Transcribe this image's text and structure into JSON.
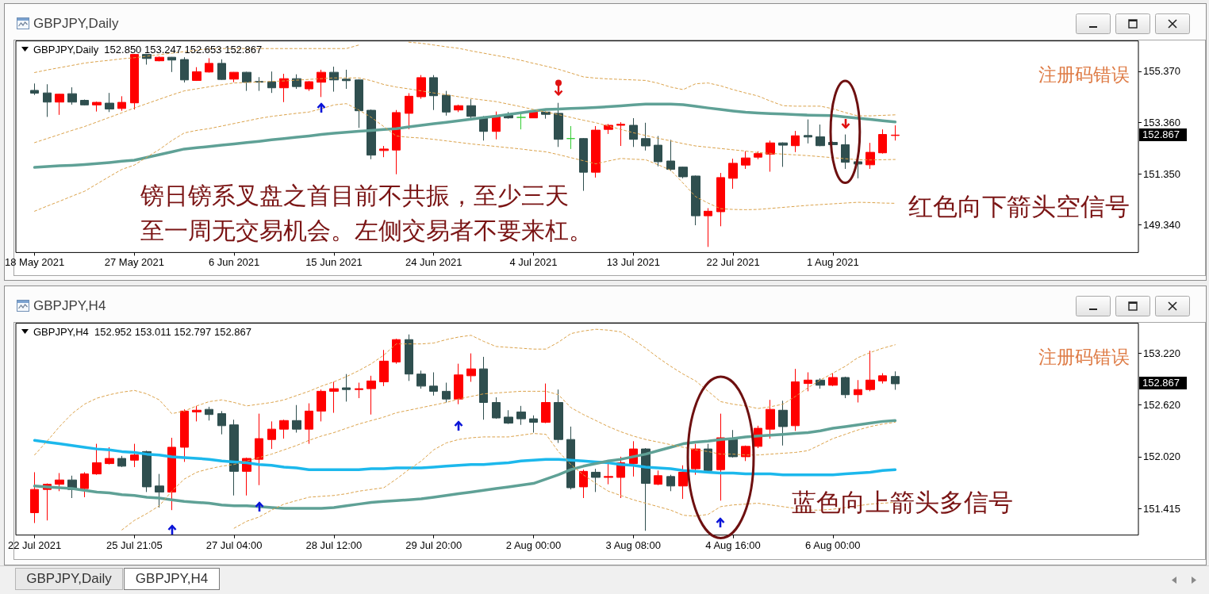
{
  "chart_data": [
    {
      "type": "candlestick",
      "title": "GBPJPY,Daily",
      "subtitle": "GBPJPY,Daily  152.850 153.247 152.653 152.867",
      "categories": [
        null,
        "18 May 2021",
        null,
        null,
        null,
        null,
        null,
        null,
        null,
        "27 May 2021",
        null,
        null,
        null,
        null,
        null,
        null,
        null,
        "6 Jun 2021",
        null,
        null,
        null,
        null,
        null,
        null,
        null,
        "15 Jun 2021",
        null,
        null,
        null,
        null,
        null,
        null,
        null,
        "24 Jun 2021",
        null,
        null,
        null,
        null,
        null,
        null,
        null,
        "4 Jul 2021",
        null,
        null,
        null,
        null,
        null,
        null,
        null,
        "13 Jul 2021",
        null,
        null,
        null,
        null,
        null,
        null,
        null,
        "22 Jul 2021",
        null,
        null,
        null,
        null,
        null,
        null,
        null,
        "1 Aug 2021",
        null,
        null,
        null,
        null,
        null,
        null,
        null,
        null,
        null,
        null,
        null,
        null,
        null,
        null,
        null,
        null,
        null,
        null,
        null,
        null,
        null,
        null,
        null,
        null
      ],
      "ohlc": [
        null,
        [
          154.62,
          154.89,
          154.44,
          154.51
        ],
        [
          154.52,
          154.86,
          153.58,
          154.16
        ],
        [
          154.16,
          154.49,
          153.66,
          154.47
        ],
        [
          154.49,
          154.74,
          154.06,
          154.16
        ],
        [
          154.23,
          154.26,
          154.03,
          154.05
        ],
        [
          154.05,
          154.18,
          153.79,
          154.15
        ],
        [
          154.12,
          154.52,
          153.77,
          153.89
        ],
        [
          153.91,
          154.39,
          153.82,
          154.15
        ],
        [
          154.13,
          156.05,
          153.87,
          156.03
        ],
        [
          156.03,
          156.05,
          155.63,
          155.87
        ],
        [
          155.78,
          155.95,
          155.76,
          155.92
        ],
        [
          155.92,
          155.93,
          155.34,
          155.81
        ],
        [
          155.83,
          155.92,
          154.93,
          155.03
        ],
        [
          155.01,
          155.53,
          154.99,
          155.35
        ],
        [
          155.34,
          155.88,
          155.32,
          155.68
        ],
        [
          155.68,
          155.84,
          155.03,
          155.05
        ],
        [
          155.06,
          155.34,
          154.94,
          155.33
        ],
        [
          155.33,
          155.35,
          154.6,
          154.94
        ],
        [
          154.97,
          155.14,
          154.6,
          154.94
        ],
        [
          154.96,
          155.36,
          154.52,
          154.72
        ],
        [
          154.72,
          155.27,
          154.16,
          155.08
        ],
        [
          155.08,
          155.25,
          154.68,
          154.77
        ],
        [
          154.68,
          154.98,
          154.6,
          154.96
        ],
        [
          154.94,
          155.43,
          154.36,
          155.33
        ],
        [
          155.33,
          155.55,
          154.57,
          155.03
        ],
        [
          155.06,
          155.43,
          154.68,
          155.0
        ],
        [
          155.03,
          155.06,
          153.15,
          153.82
        ],
        [
          153.84,
          153.87,
          151.92,
          152.08
        ],
        [
          152.26,
          152.44,
          152.0,
          152.32
        ],
        [
          152.28,
          153.85,
          151.33,
          153.75
        ],
        [
          153.72,
          154.51,
          153.1,
          154.39
        ],
        [
          154.37,
          155.22,
          154.29,
          155.12
        ],
        [
          155.12,
          155.22,
          153.85,
          154.41
        ],
        [
          154.43,
          154.6,
          153.63,
          153.77
        ],
        [
          153.85,
          154.06,
          153.77,
          154.02
        ],
        [
          154.02,
          154.27,
          153.44,
          153.6
        ],
        [
          153.54,
          153.61,
          152.65,
          153.01
        ],
        [
          153.01,
          153.79,
          152.7,
          153.59
        ],
        [
          153.64,
          153.77,
          153.51,
          153.54
        ],
        [
          153.56,
          153.75,
          153.09,
          153.56
        ],
        [
          153.54,
          153.79,
          153.53,
          153.77
        ],
        [
          153.77,
          153.79,
          153.51,
          153.68
        ],
        [
          153.72,
          154.13,
          152.4,
          152.7
        ],
        [
          152.73,
          153.22,
          152.32,
          152.73
        ],
        [
          152.73,
          152.75,
          150.68,
          151.41
        ],
        [
          151.41,
          153.22,
          151.2,
          153.06
        ],
        [
          153.09,
          153.3,
          152.91,
          153.25
        ],
        [
          153.25,
          153.37,
          152.44,
          153.29
        ],
        [
          153.25,
          153.53,
          152.4,
          152.7
        ],
        [
          152.73,
          153.35,
          152.26,
          152.44
        ],
        [
          152.47,
          152.83,
          151.64,
          151.82
        ],
        [
          151.85,
          152.68,
          151.46,
          151.52
        ],
        [
          151.61,
          151.63,
          151.17,
          151.23
        ],
        [
          151.26,
          151.28,
          149.33,
          149.7
        ],
        [
          149.7,
          150.0,
          148.48,
          149.88
        ],
        [
          149.86,
          151.38,
          149.29,
          151.2
        ],
        [
          151.17,
          151.94,
          150.76,
          151.76
        ],
        [
          151.69,
          152.23,
          151.54,
          151.97
        ],
        [
          152.0,
          152.23,
          151.92,
          152.14
        ],
        [
          152.12,
          152.65,
          151.43,
          152.56
        ],
        [
          152.56,
          152.58,
          151.62,
          152.47
        ],
        [
          152.45,
          153.03,
          152.2,
          152.84
        ],
        [
          152.85,
          153.48,
          152.54,
          152.79
        ],
        [
          152.8,
          153.28,
          152.43,
          152.45
        ],
        [
          152.58,
          152.61,
          152.47,
          152.49
        ],
        [
          152.49,
          152.89,
          151.54,
          151.8
        ],
        [
          151.82,
          151.84,
          151.17,
          151.73
        ],
        [
          151.7,
          152.56,
          151.54,
          152.19
        ],
        [
          152.17,
          153.09,
          152.14,
          152.89
        ],
        [
          152.85,
          153.247,
          152.653,
          152.867
        ],
        null,
        null,
        null,
        null,
        null,
        null,
        null,
        null,
        null,
        null,
        null,
        null,
        null,
        null,
        null,
        null,
        null,
        null,
        null
      ],
      "colors": [
        null,
        "#2f4f4f",
        "#2f4f4f",
        "#ff0000",
        "#2f4f4f",
        "#2f4f4f",
        "#ff0000",
        "#2f4f4f",
        "#ff0000",
        "#ff0000",
        "#2f4f4f",
        "#ff0000",
        "#2f4f4f",
        "#2f4f4f",
        "#ff0000",
        "#ff0000",
        "#2f4f4f",
        "#ff0000",
        "#2f4f4f",
        "#2f4f4f",
        "#2f4f4f",
        "#ff0000",
        "#2f4f4f",
        "#ff0000",
        "#ff0000",
        "#2f4f4f",
        "#2f4f4f",
        "#2f4f4f",
        "#2f4f4f",
        "#ff0000",
        "#ff0000",
        "#ff0000",
        "#ff0000",
        "#2f4f4f",
        "#2f4f4f",
        "#ff0000",
        "#2f4f4f",
        "#2f4f4f",
        "#ff0000",
        "#2f4f4f",
        "#33cc33",
        "#ff0000",
        "#2f4f4f",
        "#2f4f4f",
        "#33cc33",
        "#2f4f4f",
        "#ff0000",
        "#ff0000",
        "#ff0000",
        "#2f4f4f",
        "#2f4f4f",
        "#2f4f4f",
        "#2f4f4f",
        "#2f4f4f",
        "#2f4f4f",
        "#ff0000",
        "#ff0000",
        "#ff0000",
        "#ff0000",
        "#ff0000",
        "#ff0000",
        "#2f4f4f",
        "#ff0000",
        "#2f4f4f",
        "#2f4f4f",
        "#2f4f4f",
        "#2f4f4f",
        "#2f4f4f",
        "#ff0000",
        "#ff0000",
        "#ff0000",
        null,
        null,
        null,
        null,
        null,
        null,
        null,
        null,
        null,
        null,
        null,
        null,
        null,
        null,
        null,
        null,
        null,
        null,
        null
      ],
      "series": [
        {
          "type": "line",
          "color": "#5fa196",
          "line_style": "solid",
          "values": [
            null,
            151.6,
            151.63,
            151.66,
            151.68,
            151.71,
            151.75,
            151.79,
            151.84,
            151.88,
            151.99,
            152.1,
            152.21,
            152.32,
            152.37,
            152.42,
            152.47,
            152.52,
            152.57,
            152.62,
            152.68,
            152.73,
            152.78,
            152.83,
            152.89,
            152.94,
            152.98,
            153.02,
            153.05,
            153.09,
            153.12,
            153.19,
            153.25,
            153.31,
            153.37,
            153.43,
            153.49,
            153.55,
            153.61,
            153.68,
            153.74,
            153.81,
            153.87,
            153.89,
            153.91,
            153.93,
            153.95,
            153.98,
            154.01,
            154.05,
            154.08,
            154.08,
            154.08,
            154.06,
            154.0,
            153.93,
            153.87,
            153.81,
            153.76,
            153.73,
            153.71,
            153.69,
            153.67,
            153.65,
            153.64,
            153.63,
            153.58,
            153.53,
            153.48,
            153.43,
            153.38,
            null,
            null,
            null,
            null,
            null,
            null,
            null,
            null,
            null,
            null,
            null,
            null,
            null,
            null,
            null,
            null,
            null,
            null,
            null
          ]
        },
        {
          "type": "line",
          "color": "#dba24a",
          "line_style": "dashed",
          "values": [
            null,
            155.32,
            155.42,
            155.51,
            155.6,
            155.69,
            155.75,
            155.8,
            155.86,
            155.9,
            155.96,
            156.02,
            156.08,
            156.14,
            156.2,
            156.26,
            156.26,
            156.26,
            156.26,
            156.26,
            156.26,
            156.26,
            156.26,
            156.26,
            156.26,
            156.26,
            156.26,
            156.4,
            null,
            null,
            null,
            156.51,
            156.47,
            156.4,
            156.33,
            156.27,
            156.17,
            156.08,
            155.99,
            155.9,
            155.8,
            155.68,
            155.57,
            155.45,
            155.3,
            155.15,
            155.1,
            155.07,
            155.05,
            155.03,
            155.01,
            154.9,
            154.75,
            154.65,
            154.88,
            154.91,
            154.8,
            154.65,
            154.52,
            154.4,
            154.2,
            154.02,
            154.0,
            154.0,
            154.0,
            153.9,
            153.75,
            153.62,
            153.62,
            153.64,
            153.66,
            null,
            null,
            null,
            null,
            null,
            null,
            null,
            null,
            null,
            null,
            null,
            null,
            null,
            null,
            null,
            null,
            null,
            null,
            null
          ]
        },
        {
          "type": "line",
          "color": "#dba24a",
          "line_style": "dashed",
          "values": [
            null,
            152.57,
            152.73,
            152.89,
            153.05,
            153.2,
            153.38,
            153.56,
            153.74,
            153.93,
            154.1,
            154.27,
            154.44,
            154.6,
            154.68,
            154.76,
            154.84,
            154.91,
            154.93,
            154.95,
            154.97,
            154.99,
            155.02,
            155.05,
            155.08,
            155.11,
            155.11,
            155.11,
            155.0,
            154.85,
            154.75,
            154.68,
            154.6,
            154.52,
            154.45,
            154.37,
            154.3,
            154.24,
            154.18,
            154.08,
            153.98,
            153.87,
            153.77,
            153.67,
            153.56,
            153.45,
            153.35,
            153.22,
            153.09,
            152.96,
            152.85,
            152.74,
            152.64,
            152.53,
            152.44,
            152.39,
            152.34,
            152.29,
            152.24,
            152.18,
            152.15,
            152.12,
            152.09,
            152.06,
            152.02,
            151.98,
            151.94,
            151.9,
            151.89,
            151.9,
            151.91,
            null,
            null,
            null,
            null,
            null,
            null,
            null,
            null,
            null,
            null,
            null,
            null,
            null,
            null,
            null,
            null,
            null,
            null,
            null
          ]
        },
        {
          "type": "line",
          "color": "#dba24a",
          "line_style": "dashed",
          "values": [
            null,
            149.88,
            150.08,
            150.27,
            150.47,
            150.66,
            150.95,
            151.24,
            151.52,
            151.69,
            152.0,
            152.3,
            152.65,
            152.95,
            153.05,
            153.12,
            153.22,
            153.32,
            153.42,
            153.52,
            153.6,
            153.66,
            153.72,
            153.77,
            153.9,
            154.05,
            154.1,
            153.85,
            153.56,
            153.2,
            152.83,
            152.78,
            152.75,
            152.7,
            152.64,
            152.58,
            152.52,
            152.47,
            152.42,
            152.37,
            152.32,
            152.26,
            152.21,
            152.1,
            151.98,
            151.86,
            151.74,
            151.85,
            151.95,
            151.92,
            151.9,
            151.7,
            151.49,
            150.98,
            150.45,
            150.2,
            149.98,
            149.95,
            149.94,
            149.95,
            149.99,
            150.03,
            150.07,
            150.11,
            150.14,
            150.17,
            150.2,
            150.23,
            150.22,
            150.2,
            150.19,
            null,
            null,
            null,
            null,
            null,
            null,
            null,
            null,
            null,
            null,
            null,
            null,
            null,
            null,
            null,
            null,
            null,
            null,
            null
          ]
        }
      ],
      "ylim": [
        148.26,
        156.56
      ],
      "yticks": [
        {
          "value": 149.34,
          "label": "149.340"
        },
        {
          "value": 151.35,
          "label": "151.350"
        },
        {
          "value": 153.36,
          "label": "153.360"
        },
        {
          "value": 155.37,
          "label": "155.370"
        }
      ],
      "marker": "none",
      "annotations": [
        "镑日镑系叉盘之首目前不共振，至少三天",
        "至一周无交易机会。左侧交易者不要来杠。",
        "注册码错误",
        "红色向下箭头空信号",
        "152.867"
      ]
    },
    {
      "type": "candlestick",
      "title": "GBPJPY,H4",
      "subtitle": "GBPJPY,H4  152.952 153.011 152.797 152.867",
      "categories": [
        null,
        "22 Jul 2021",
        null,
        null,
        null,
        null,
        null,
        null,
        null,
        "25 Jul 21:05",
        null,
        null,
        null,
        null,
        null,
        null,
        null,
        "27 Jul 04:00",
        null,
        null,
        null,
        null,
        null,
        null,
        null,
        "28 Jul 12:00",
        null,
        null,
        null,
        null,
        null,
        null,
        null,
        "29 Jul 20:00",
        null,
        null,
        null,
        null,
        null,
        null,
        null,
        "2 Aug 00:00",
        null,
        null,
        null,
        null,
        null,
        null,
        null,
        "3 Aug 08:00",
        null,
        null,
        null,
        null,
        null,
        null,
        null,
        "4 Aug 16:00",
        null,
        null,
        null,
        null,
        null,
        null,
        null,
        "6 Aug 00:00",
        null,
        null,
        null,
        null,
        null,
        null,
        null,
        null,
        null,
        null,
        null,
        null,
        null,
        null,
        null,
        null,
        null,
        null,
        null,
        null,
        null,
        null,
        null,
        null
      ],
      "ohlc": [
        null,
        [
          151.37,
          151.84,
          151.25,
          151.64
        ],
        [
          151.64,
          151.71,
          151.28,
          151.7
        ],
        [
          151.7,
          151.83,
          151.62,
          151.75
        ],
        [
          151.75,
          151.8,
          151.54,
          151.64
        ],
        [
          151.65,
          151.84,
          151.55,
          151.82
        ],
        [
          151.82,
          152.17,
          151.81,
          151.95
        ],
        [
          151.94,
          152.13,
          151.93,
          152.0
        ],
        [
          152.0,
          152.03,
          151.9,
          151.91
        ],
        [
          151.98,
          152.17,
          151.9,
          152.04
        ],
        [
          152.08,
          152.09,
          151.61,
          151.67
        ],
        [
          151.68,
          151.82,
          151.43,
          151.61
        ],
        [
          151.61,
          152.24,
          151.4,
          152.13
        ],
        [
          152.13,
          152.57,
          151.96,
          152.55
        ],
        [
          152.54,
          152.61,
          152.43,
          152.56
        ],
        [
          152.57,
          152.6,
          152.44,
          152.51
        ],
        [
          152.52,
          152.55,
          152.28,
          152.38
        ],
        [
          152.39,
          152.45,
          151.57,
          151.85
        ],
        [
          151.85,
          152.01,
          151.57,
          152.0
        ],
        [
          151.99,
          152.52,
          151.69,
          152.23
        ],
        [
          152.22,
          152.43,
          152.11,
          152.34
        ],
        [
          152.34,
          152.45,
          152.23,
          152.44
        ],
        [
          152.44,
          152.62,
          152.3,
          152.34
        ],
        [
          152.34,
          152.64,
          152.17,
          152.55
        ],
        [
          152.55,
          152.8,
          152.43,
          152.78
        ],
        [
          152.78,
          152.89,
          152.53,
          152.81
        ],
        [
          152.82,
          152.98,
          152.66,
          152.8
        ],
        [
          152.8,
          152.88,
          152.7,
          152.81
        ],
        [
          152.81,
          152.96,
          152.51,
          152.9
        ],
        [
          152.89,
          153.26,
          152.84,
          153.13
        ],
        [
          153.12,
          153.39,
          153.1,
          153.38
        ],
        [
          153.38,
          153.44,
          152.9,
          152.98
        ],
        [
          152.98,
          153.02,
          152.81,
          152.84
        ],
        [
          152.84,
          153.0,
          152.73,
          152.78
        ],
        [
          152.78,
          152.88,
          152.65,
          152.69
        ],
        [
          152.69,
          153.1,
          152.63,
          152.97
        ],
        [
          152.96,
          153.22,
          152.89,
          153.04
        ],
        [
          153.04,
          153.18,
          152.45,
          152.65
        ],
        [
          152.65,
          152.71,
          152.46,
          152.47
        ],
        [
          152.48,
          152.56,
          152.4,
          152.41
        ],
        [
          152.54,
          152.61,
          152.39,
          152.46
        ],
        [
          152.46,
          152.5,
          152.3,
          152.42
        ],
        [
          152.42,
          152.87,
          152.41,
          152.65
        ],
        [
          152.65,
          152.8,
          152.18,
          152.22
        ],
        [
          152.22,
          152.37,
          151.64,
          151.66
        ],
        [
          151.67,
          151.87,
          151.54,
          151.85
        ],
        [
          151.84,
          151.88,
          151.61,
          151.78
        ],
        [
          151.78,
          151.94,
          151.7,
          151.79
        ],
        [
          151.78,
          152.02,
          151.54,
          151.95
        ],
        [
          151.94,
          152.2,
          151.79,
          152.11
        ],
        [
          152.11,
          152.12,
          151.16,
          151.71
        ],
        [
          151.7,
          151.86,
          151.69,
          151.8
        ],
        [
          151.79,
          151.81,
          151.62,
          151.68
        ],
        [
          151.68,
          151.92,
          151.53,
          151.84
        ],
        [
          151.88,
          152.17,
          151.81,
          152.11
        ],
        [
          152.11,
          152.17,
          151.85,
          151.86
        ],
        [
          151.87,
          152.52,
          151.51,
          152.24
        ],
        [
          152.22,
          152.33,
          152.01,
          152.02
        ],
        [
          152.02,
          152.15,
          151.97,
          152.14
        ],
        [
          152.14,
          152.38,
          152.12,
          152.35
        ],
        [
          152.34,
          152.68,
          152.23,
          152.57
        ],
        [
          152.56,
          152.67,
          152.15,
          152.37
        ],
        [
          152.38,
          153.04,
          152.32,
          152.89
        ],
        [
          152.87,
          153.0,
          152.78,
          152.91
        ],
        [
          152.91,
          152.93,
          152.81,
          152.85
        ],
        [
          152.85,
          152.99,
          152.84,
          152.94
        ],
        [
          152.94,
          152.95,
          152.7,
          152.74
        ],
        [
          152.74,
          152.91,
          152.65,
          152.8
        ],
        [
          152.8,
          153.25,
          152.78,
          152.91
        ],
        [
          152.9,
          152.99,
          152.87,
          152.96
        ],
        [
          152.952,
          153.011,
          152.797,
          152.867
        ],
        null,
        null,
        null,
        null,
        null,
        null,
        null,
        null,
        null,
        null,
        null,
        null,
        null,
        null,
        null,
        null,
        null,
        null,
        null
      ],
      "colors": [
        null,
        "#ff0000",
        "#ff0000",
        "#ff0000",
        "#2f4f4f",
        "#ff0000",
        "#ff0000",
        "#ff0000",
        "#2f4f4f",
        "#ff0000",
        "#2f4f4f",
        "#2f4f4f",
        "#ff0000",
        "#ff0000",
        "#ff0000",
        "#2f4f4f",
        "#2f4f4f",
        "#2f4f4f",
        "#ff0000",
        "#ff0000",
        "#ff0000",
        "#ff0000",
        "#2f4f4f",
        "#ff0000",
        "#ff0000",
        "#ff0000",
        "#2f4f4f",
        "#ff0000",
        "#ff0000",
        "#ff0000",
        "#ff0000",
        "#2f4f4f",
        "#2f4f4f",
        "#2f4f4f",
        "#2f4f4f",
        "#ff0000",
        "#ff0000",
        "#2f4f4f",
        "#2f4f4f",
        "#2f4f4f",
        "#2f4f4f",
        "#2f4f4f",
        "#ff0000",
        "#2f4f4f",
        "#2f4f4f",
        "#ff0000",
        "#2f4f4f",
        "#ff0000",
        "#ff0000",
        "#ff0000",
        "#2f4f4f",
        "#ff0000",
        "#2f4f4f",
        "#ff0000",
        "#ff0000",
        "#2f4f4f",
        "#ff0000",
        "#2f4f4f",
        "#ff0000",
        "#ff0000",
        "#ff0000",
        "#2f4f4f",
        "#ff0000",
        "#ff0000",
        "#2f4f4f",
        "#ff0000",
        "#2f4f4f",
        "#ff0000",
        "#ff0000",
        "#ff0000",
        "#2f4f4f",
        null,
        null,
        null,
        null,
        null,
        null,
        null,
        null,
        null,
        null,
        null,
        null,
        null,
        null,
        null,
        null,
        null,
        null,
        null
      ],
      "series": [
        {
          "type": "line",
          "color": "#1cb8ec",
          "line_style": "solid",
          "values": [
            null,
            152.21,
            152.19,
            152.17,
            152.15,
            152.13,
            152.11,
            152.1,
            152.08,
            152.07,
            152.05,
            152.04,
            152.02,
            152.01,
            152.0,
            151.99,
            151.97,
            151.96,
            151.95,
            151.93,
            151.92,
            151.9,
            151.89,
            151.87,
            151.87,
            151.87,
            151.87,
            151.87,
            151.88,
            151.88,
            151.89,
            151.89,
            151.89,
            151.9,
            151.91,
            151.92,
            151.93,
            151.93,
            151.94,
            151.95,
            151.97,
            151.98,
            151.99,
            151.99,
            151.98,
            151.97,
            151.96,
            151.95,
            151.93,
            151.92,
            151.9,
            151.89,
            151.88,
            151.86,
            151.85,
            151.84,
            151.83,
            151.83,
            151.82,
            151.82,
            151.82,
            151.81,
            151.81,
            151.81,
            151.81,
            151.81,
            151.82,
            151.83,
            151.84,
            151.86,
            151.87,
            null,
            null,
            null,
            null,
            null,
            null,
            null,
            null,
            null,
            null,
            null,
            null,
            null,
            null,
            null,
            null,
            null,
            null,
            null
          ]
        },
        {
          "type": "line",
          "color": "#5fa196",
          "line_style": "solid",
          "values": [
            null,
            151.68,
            151.67,
            151.66,
            151.65,
            151.63,
            151.61,
            151.6,
            151.58,
            151.57,
            151.55,
            151.54,
            151.52,
            151.5,
            151.49,
            151.48,
            151.46,
            151.45,
            151.45,
            151.44,
            151.43,
            151.42,
            151.42,
            151.42,
            151.42,
            151.43,
            151.45,
            151.47,
            151.49,
            151.5,
            151.51,
            151.52,
            151.53,
            151.55,
            151.57,
            151.59,
            151.61,
            151.63,
            151.65,
            151.67,
            151.69,
            151.71,
            151.76,
            151.81,
            151.87,
            151.91,
            151.94,
            151.97,
            151.99,
            152.02,
            152.05,
            152.09,
            152.13,
            152.17,
            152.19,
            152.2,
            152.22,
            152.23,
            152.25,
            152.26,
            152.27,
            152.28,
            152.29,
            152.3,
            152.32,
            152.35,
            152.37,
            152.39,
            152.41,
            152.43,
            152.44,
            null,
            null,
            null,
            null,
            null,
            null,
            null,
            null,
            null,
            null,
            null,
            null,
            null,
            null,
            null,
            null,
            null,
            null,
            null
          ]
        },
        {
          "type": "line",
          "color": "#dba24a",
          "line_style": "dashed",
          "values": [
            null,
            152.04,
            152.2,
            152.37,
            152.52,
            152.63,
            152.7,
            152.74,
            152.77,
            152.79,
            152.75,
            152.68,
            152.52,
            152.55,
            152.61,
            152.66,
            152.68,
            152.65,
            152.61,
            152.63,
            152.65,
            152.68,
            152.73,
            152.78,
            152.84,
            152.89,
            152.95,
            153.02,
            153.1,
            153.2,
            153.33,
            153.33,
            153.33,
            153.34,
            153.38,
            153.41,
            153.43,
            153.36,
            153.3,
            153.29,
            153.28,
            153.27,
            153.27,
            153.35,
            153.45,
            153.48,
            153.5,
            153.49,
            153.47,
            153.38,
            153.28,
            153.17,
            153.07,
            152.98,
            152.9,
            152.78,
            152.66,
            152.63,
            152.61,
            152.58,
            152.6,
            152.63,
            152.72,
            152.82,
            152.91,
            152.99,
            153.07,
            153.17,
            153.23,
            153.28,
            153.32,
            null,
            null,
            null,
            null,
            null,
            null,
            null,
            null,
            null,
            null,
            null,
            null,
            null,
            null,
            null,
            null,
            null,
            null,
            null
          ]
        },
        {
          "type": "line",
          "color": "#dba24a",
          "line_style": "dashed",
          "values": [
            null,
            null,
            null,
            null,
            null,
            null,
            null,
            null,
            151.17,
            151.28,
            151.36,
            151.45,
            151.62,
            151.76,
            151.84,
            151.88,
            151.91,
            151.93,
            151.97,
            152.01,
            152.05,
            152.1,
            152.15,
            152.21,
            152.26,
            152.3,
            152.35,
            152.4,
            152.44,
            152.48,
            152.53,
            152.56,
            152.59,
            152.62,
            152.65,
            152.69,
            152.72,
            152.75,
            152.76,
            152.77,
            152.78,
            152.78,
            152.78,
            152.74,
            152.59,
            152.51,
            152.44,
            152.37,
            152.31,
            152.26,
            152.22,
            152.19,
            152.16,
            152.13,
            152.1,
            152.08,
            152.05,
            152.05,
            152.04,
            152.04,
            152.05,
            152.06,
            152.07,
            152.09,
            152.16,
            152.23,
            152.28,
            152.33,
            152.37,
            152.4,
            152.42,
            null,
            null,
            null,
            null,
            null,
            null,
            null,
            null,
            null,
            null,
            null,
            null,
            null,
            null,
            null,
            null,
            null,
            null,
            null
          ]
        },
        {
          "type": "line",
          "color": "#dba24a",
          "line_style": "dashed",
          "values": [
            null,
            null,
            null,
            null,
            null,
            null,
            null,
            null,
            null,
            null,
            null,
            null,
            null,
            null,
            null,
            null,
            null,
            151.19,
            151.27,
            151.32,
            151.4,
            151.47,
            151.51,
            151.55,
            151.56,
            151.57,
            151.59,
            151.62,
            151.64,
            151.66,
            151.76,
            151.87,
            151.97,
            152.1,
            152.18,
            152.22,
            152.24,
            152.25,
            152.25,
            152.25,
            152.27,
            152.29,
            152.28,
            152.08,
            151.93,
            151.81,
            151.71,
            151.62,
            151.57,
            151.52,
            151.48,
            151.44,
            151.4,
            151.34,
            151.33,
            151.35,
            151.44,
            151.46,
            151.47,
            151.48,
            151.46,
            151.44,
            151.42,
            151.4,
            151.4,
            151.41,
            151.43,
            151.45,
            151.47,
            151.48,
            151.49,
            null,
            null,
            null,
            null,
            null,
            null,
            null,
            null,
            null,
            null,
            null,
            null,
            null,
            null,
            null,
            null,
            null,
            null,
            null
          ]
        }
      ],
      "ylim": [
        151.11,
        153.57
      ],
      "yticks": [
        {
          "value": 151.415,
          "label": "151.415"
        },
        {
          "value": 152.02,
          "label": "152.020"
        },
        {
          "value": 152.62,
          "label": "152.620"
        },
        {
          "value": 153.22,
          "label": "153.220"
        }
      ],
      "marker": "none",
      "annotations": [
        "注册码错误",
        "蓝色向上箭头多信号",
        "152.867"
      ]
    }
  ]
}
